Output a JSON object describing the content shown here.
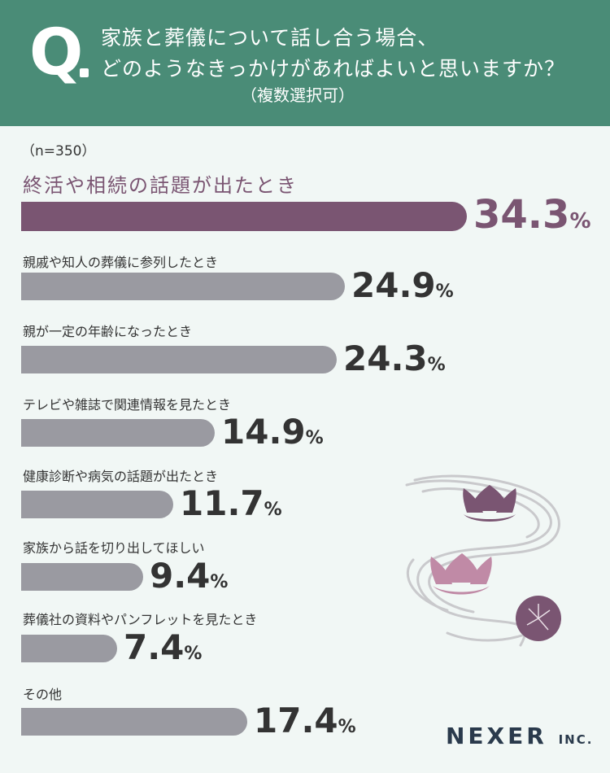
{
  "header": {
    "q_mark": "Q",
    "question_line1": "家族と葬儀について話し合う場合、",
    "question_line2": "どのようなきっかけがあればよいと思いますか？",
    "note": "（複数選択可）",
    "background_color": "#4a8c77"
  },
  "sample_size": "（n=350）",
  "chart_data": {
    "type": "bar",
    "orientation": "horizontal",
    "categories": [
      "終活や相続の話題が出たとき",
      "親戚や知人の葬儀に参列したとき",
      "親が一定の年齢になったとき",
      "テレビや雑誌で関連情報を見たとき",
      "健康診断や病気の話題が出たとき",
      "家族から話を切り出してほしい",
      "葬儀社の資料やパンフレットを見たとき",
      "その他"
    ],
    "values": [
      34.3,
      24.9,
      24.3,
      14.9,
      11.7,
      9.4,
      7.4,
      17.4
    ],
    "value_labels": [
      "34.3",
      "24.9",
      "24.3",
      "14.9",
      "11.7",
      "9.4",
      "7.4",
      "17.4"
    ],
    "unit": "%",
    "highlight_index": 0,
    "colors": {
      "highlight": "#7a5572",
      "default": "#9a9aa1"
    },
    "grid": false,
    "legend": "none"
  },
  "logo": {
    "text": "NEXER",
    "suffix": "INC."
  },
  "decoration": {
    "icon": "lotus-and-stream-illustration"
  }
}
